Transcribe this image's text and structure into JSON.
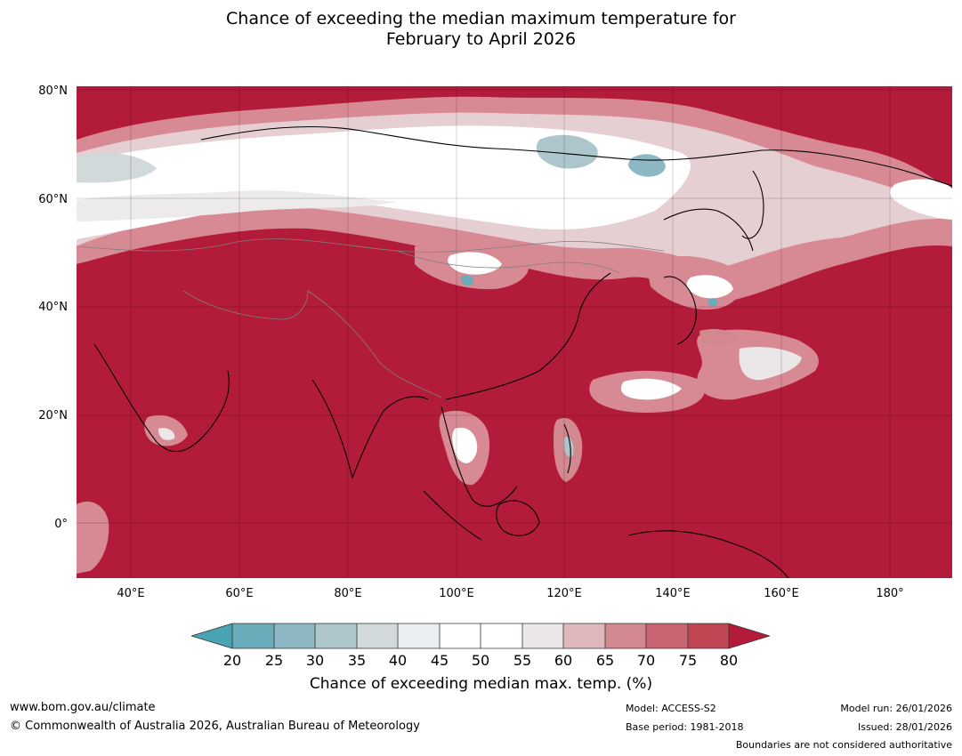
{
  "title": {
    "line1": "Chance of exceeding the median maximum temperature for",
    "line2": "February to April 2026"
  },
  "map": {
    "region": "Asia",
    "lat_labels": [
      "80°N",
      "60°N",
      "40°N",
      "20°N",
      "0°"
    ],
    "lon_labels": [
      "40°E",
      "60°E",
      "80°E",
      "100°E",
      "120°E",
      "140°E",
      "160°E",
      "180°"
    ],
    "lon_range": [
      30,
      191
    ],
    "lat_range": [
      -10,
      81
    ]
  },
  "colorbar": {
    "ticks": [
      "20",
      "25",
      "30",
      "35",
      "40",
      "45",
      "50",
      "55",
      "60",
      "65",
      "70",
      "75",
      "80"
    ],
    "colors": [
      "#6aabb9",
      "#8cb7c3",
      "#acc6cb",
      "#d1d9da",
      "#e9eef0",
      "#ffffff",
      "#ffffff",
      "#ebe7e8",
      "#deb8bd",
      "#d38890",
      "#c76470",
      "#bf4652"
    ],
    "under_color": "#4aa3b3",
    "over_color": "#b31b3a",
    "title": "Chance of exceeding median max. temp. (%)"
  },
  "footer": {
    "url": "www.bom.gov.au/climate",
    "copyright": "© Commonwealth of Australia 2026, Australian Bureau of Meteorology",
    "model": "Model: ACCESS-S2",
    "base_period": "Base period: 1981-2018",
    "model_run": "Model run: 26/01/2026",
    "issued": "Issued: 28/01/2026",
    "disclaimer": "Boundaries are not considered authoritative"
  }
}
